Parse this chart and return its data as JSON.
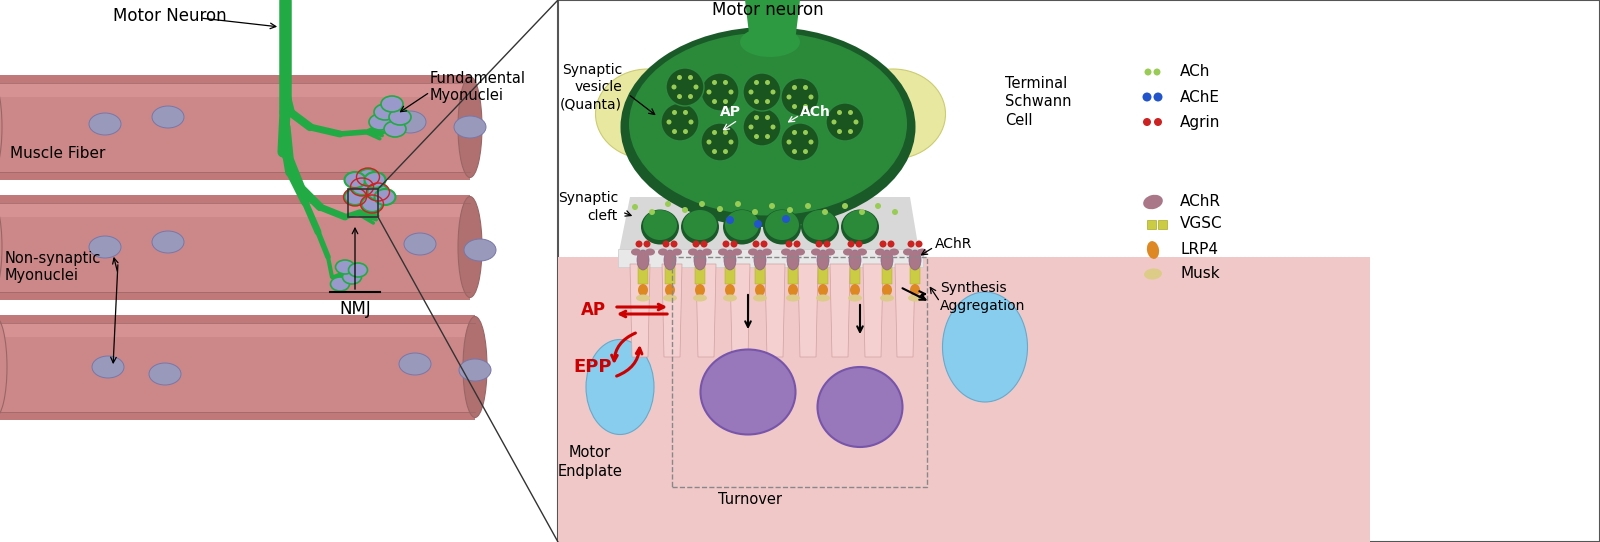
{
  "bg": "#ffffff",
  "lp": {
    "fiber_color": "#cc8888",
    "fiber_highlight": "#dd9999",
    "fiber_shadow": "#aa6666",
    "fiber_edge": "#996666",
    "nucleus_color": "#9999bb",
    "nucleus_edge": "#7777aa",
    "neuron_color": "#22aa44",
    "neuron_dark": "#118833",
    "nmj_nucleus_color": "#9999cc",
    "nmj_nucleus_edge": "#6666aa",
    "red_color": "#cc2222"
  },
  "rp": {
    "panel_bg": "#ffffff",
    "panel_edge": "#555555",
    "neuron_green": "#2a8a3a",
    "neuron_dark": "#1a5a28",
    "neuron_body_green": "#3aaa4a",
    "axon_green": "#2d9940",
    "schwann_yellow": "#e8e8a0",
    "schwann_edge": "#cccc70",
    "cleft_gray": "#d8d8d8",
    "endplate_pink": "#f0c8c8",
    "membrane_white": "#f5f5f5",
    "vesicle_dark": "#1a5520",
    "vesicle_edge": "#2d8a3e",
    "ach_green": "#99cc55",
    "ache_blue": "#2255cc",
    "agrin_red": "#cc2222",
    "achr_mauve": "#aa7788",
    "vgsc_yellow": "#cccc44",
    "lrp4_orange": "#dd8822",
    "musk_tan": "#ddcc88",
    "purple_vesicle": "#9977bb",
    "blue_cell": "#88ccee",
    "fold_pink": "#f0c8c8",
    "fold_edge": "#cc9999"
  },
  "labels": {
    "motor_neuron_l": "Motor Neuron",
    "muscle_fiber": "Muscle Fiber",
    "fundamental": "Fundamental\nMyonuclei",
    "nonsynaptic": "Non-synaptic\nMyonuclei",
    "nmj": "NMJ",
    "motor_neuron_r": "Motor neuron",
    "syn_vesicle": "Synaptic\nvesicle\n(Quanta)",
    "syn_cleft": "Synaptic\ncleft",
    "terminal_schwann": "Terminal\nSchwann\nCell",
    "ap_red": "AP",
    "epp_red": "EPP",
    "achr_label": "AChR",
    "synthesis": "Synthesis\nAggregation",
    "motor_endplate": "Motor\nEndplate",
    "turnover": "Turnover",
    "ach": "ACh",
    "ache": "AChE",
    "agrin": "Agrin",
    "achr": "AChR",
    "vgsc": "VGSC",
    "lrp4": "LRP4",
    "musk": "Musk"
  }
}
